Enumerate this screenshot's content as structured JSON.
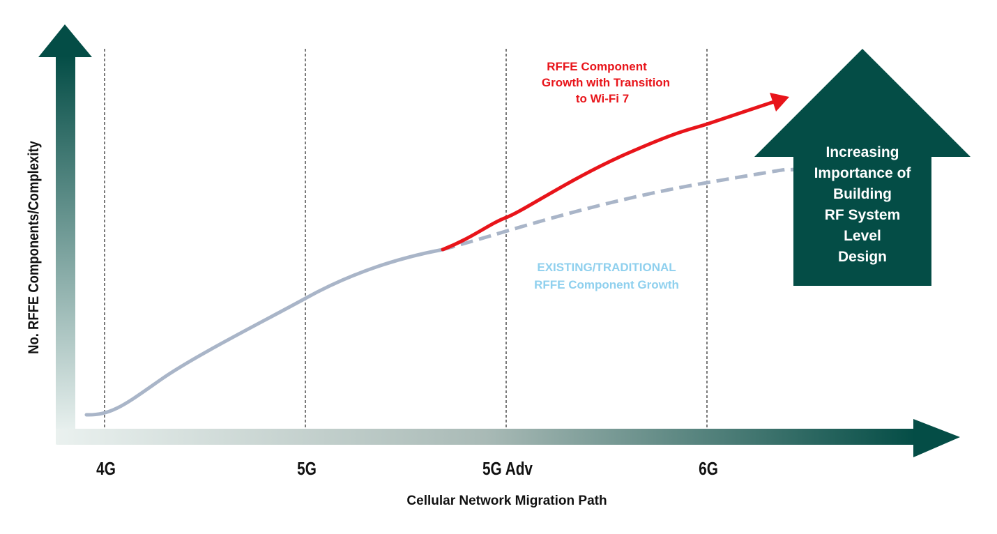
{
  "axes": {
    "y_title": "No. RFFE Components/Complexity",
    "x_title": "Cellular Network Migration Path",
    "x_ticks": [
      "4G",
      "5G",
      "5G Adv",
      "6G"
    ]
  },
  "annotations": {
    "wifi7_lines": [
      "RFFE Component",
      "Growth with Transition",
      "to Wi-Fi 7"
    ],
    "traditional_lines": [
      "EXISTING/TRADITIONAL",
      "RFFE Component Growth"
    ],
    "big_arrow_lines": [
      "Increasing",
      "Importance of",
      "Building",
      "RF System",
      "Level",
      "Design"
    ]
  },
  "colors": {
    "arrow_dark": "#044d46",
    "wifi7_curve": "#e8141a",
    "traditional_curve": "#a9b5c8",
    "traditional_text": "#8fd0ee"
  }
}
